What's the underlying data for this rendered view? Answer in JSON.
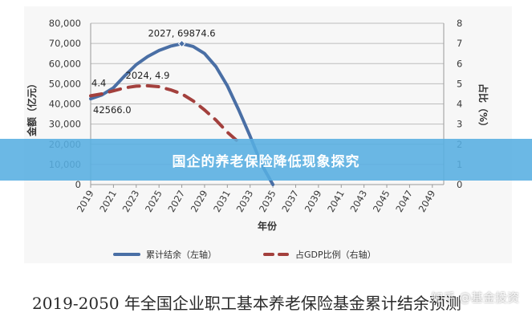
{
  "banner": {
    "title": "国企的养老保险降低现象探究"
  },
  "caption": "2019-2050 年全国企业职工基本养老保险基金累计结余预测",
  "watermark": "知乎 @基金投资",
  "chart_data": {
    "type": "line",
    "x": [
      "2019",
      "2021",
      "2023",
      "2025",
      "2027",
      "2029",
      "2031",
      "2033",
      "2035",
      "2037",
      "2039",
      "2041",
      "2043",
      "2045",
      "2047",
      "2049"
    ],
    "xlabel": "年份",
    "ylabel_left": "金额（亿元）",
    "ylabel_right": "占比（%）",
    "ylim_left": [
      0,
      80000
    ],
    "yticks_left": [
      "0",
      "10,000",
      "20,000",
      "30,000",
      "40,000",
      "50,000",
      "60,000",
      "70,000",
      "80,000"
    ],
    "ylim_right": [
      0,
      8
    ],
    "yticks_right": [
      "0",
      "1",
      "2",
      "3",
      "4",
      "5",
      "6",
      "7",
      "8"
    ],
    "grid": true,
    "legend_position": "bottom",
    "series": [
      {
        "name": "累计结余（左轴）",
        "axis": "left",
        "style": "solid",
        "color": "#4a6fa5",
        "points": [
          [
            2019,
            42566
          ],
          [
            2020,
            44500
          ],
          [
            2021,
            48000
          ],
          [
            2022,
            54000
          ],
          [
            2023,
            59500
          ],
          [
            2024,
            63500
          ],
          [
            2025,
            66500
          ],
          [
            2026,
            68600
          ],
          [
            2027,
            69874.6
          ],
          [
            2028,
            68500
          ],
          [
            2029,
            65000
          ],
          [
            2030,
            58500
          ],
          [
            2031,
            49000
          ],
          [
            2032,
            37000
          ],
          [
            2033,
            24000
          ],
          [
            2034,
            10000
          ],
          [
            2035,
            0
          ]
        ]
      },
      {
        "name": "占GDP比例（右轴）",
        "axis": "right",
        "style": "dashed",
        "color": "#a3403d",
        "points": [
          [
            2019,
            4.4
          ],
          [
            2020,
            4.5
          ],
          [
            2021,
            4.65
          ],
          [
            2022,
            4.8
          ],
          [
            2023,
            4.88
          ],
          [
            2024,
            4.9
          ],
          [
            2025,
            4.85
          ],
          [
            2026,
            4.7
          ],
          [
            2027,
            4.5
          ],
          [
            2028,
            4.15
          ],
          [
            2029,
            3.7
          ],
          [
            2030,
            3.2
          ],
          [
            2031,
            2.6
          ],
          [
            2032,
            2.1
          ]
        ]
      }
    ],
    "annotations": [
      {
        "text": "2027, 69874.6"
      },
      {
        "text": "2024, 4.9"
      },
      {
        "text": "4.4"
      },
      {
        "text": "42566.0"
      }
    ]
  }
}
